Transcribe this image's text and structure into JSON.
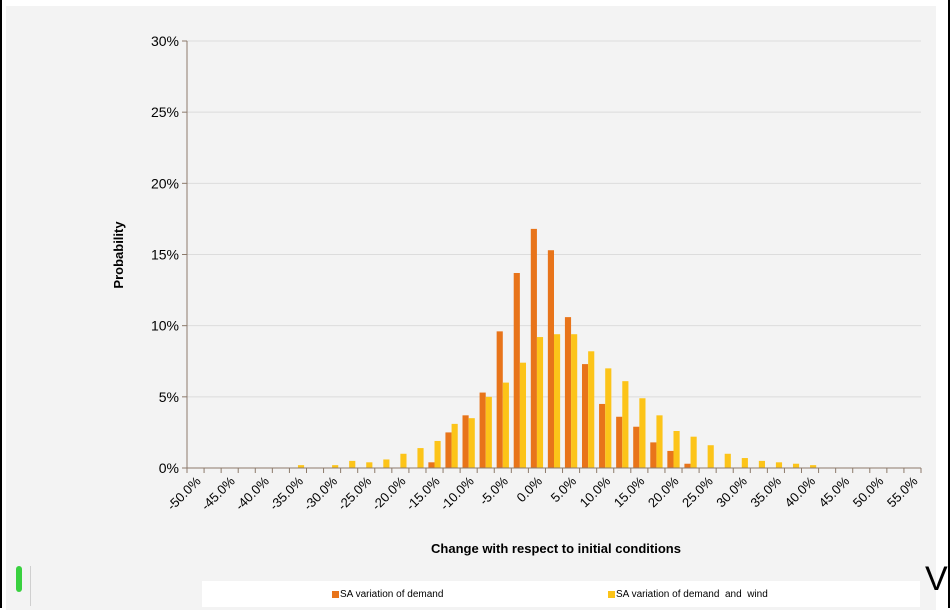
{
  "chart_data": {
    "type": "bar",
    "xlabel": "Change with respect to initial conditions",
    "ylabel": "Probability",
    "ylim": [
      0,
      30
    ],
    "yticks": [
      "0%",
      "5%",
      "10%",
      "15%",
      "20%",
      "25%",
      "30%"
    ],
    "categories": [
      "-50.0%",
      "-47.5%",
      "-45.0%",
      "-42.5%",
      "-40.0%",
      "-37.5%",
      "-35.0%",
      "-32.5%",
      "-30.0%",
      "-27.5%",
      "-25.0%",
      "-22.5%",
      "-20.0%",
      "-17.5%",
      "-15.0%",
      "-12.5%",
      "-10.0%",
      "-7.5%",
      "-5.0%",
      "-2.5%",
      "0.0%",
      "2.5%",
      "5.0%",
      "7.5%",
      "10.0%",
      "12.5%",
      "15.0%",
      "17.5%",
      "20.0%",
      "22.5%",
      "25.0%",
      "27.5%",
      "30.0%",
      "32.5%",
      "35.0%",
      "37.5%",
      "40.0%",
      "42.5%",
      "45.0%",
      "47.5%",
      "50.0%",
      "52.5%",
      "55.0%"
    ],
    "tick_labels": [
      "-50.0%",
      "-45.0%",
      "-40.0%",
      "-35.0%",
      "-30.0%",
      "-25.0%",
      "-20.0%",
      "-15.0%",
      "-10.0%",
      "-5.0%",
      "0.0%",
      "5.0%",
      "10.0%",
      "15.0%",
      "20.0%",
      "25.0%",
      "30.0%",
      "35.0%",
      "40.0%",
      "45.0%",
      "50.0%",
      "55.0%"
    ],
    "series": [
      {
        "name": "SA variation of demand",
        "color": "#e8741a",
        "values": [
          0,
          0,
          0,
          0,
          0,
          0,
          0,
          0,
          0,
          0,
          0,
          0,
          0,
          0,
          0.4,
          2.5,
          3.7,
          5.3,
          9.6,
          13.7,
          16.8,
          15.3,
          10.6,
          7.3,
          4.5,
          3.6,
          2.9,
          1.8,
          1.2,
          0.3,
          0,
          0,
          0,
          0,
          0,
          0,
          0,
          0,
          0,
          0,
          0,
          0,
          0
        ]
      },
      {
        "name": "SA variation of demand  and  wind",
        "color": "#fcc419",
        "values": [
          0,
          0,
          0,
          0,
          0,
          0,
          0.2,
          0,
          0.2,
          0.5,
          0.4,
          0.6,
          1.0,
          1.4,
          1.9,
          3.1,
          3.5,
          5.0,
          6.0,
          7.4,
          9.2,
          9.4,
          9.4,
          8.2,
          7.0,
          6.1,
          4.9,
          3.7,
          2.6,
          2.2,
          1.6,
          1.0,
          0.7,
          0.5,
          0.4,
          0.3,
          0.2,
          0,
          0,
          0,
          0,
          0,
          0
        ]
      }
    ],
    "legend_position": "bottom",
    "grid": true
  }
}
